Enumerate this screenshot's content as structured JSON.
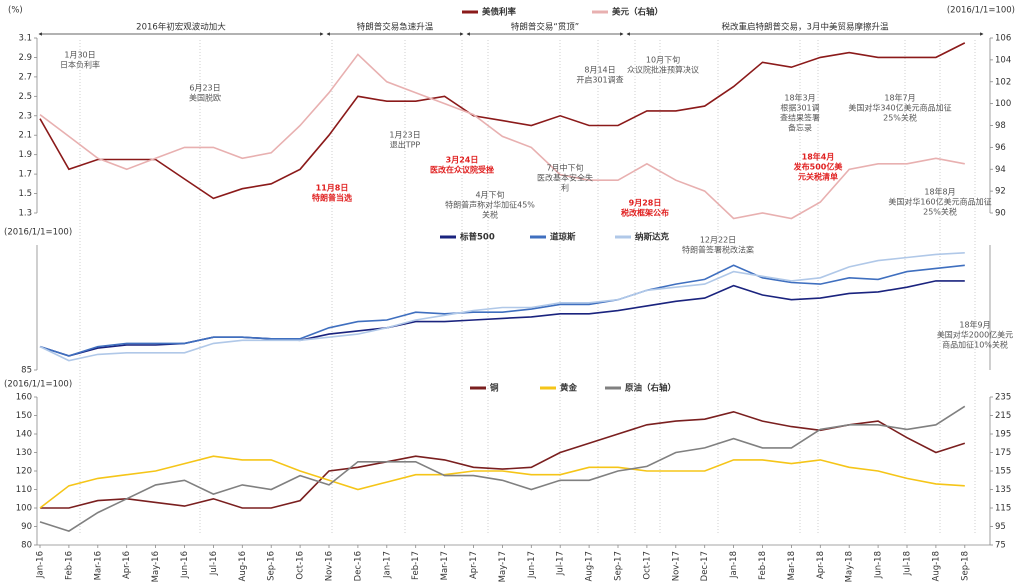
{
  "chart_data": [
    {
      "type": "line",
      "unit_label": "(%)",
      "unit_label_right": "(2016/1/1=100)",
      "ylim": [
        1.3,
        3.1
      ],
      "yticks": [
        1.3,
        1.5,
        1.7,
        1.9,
        2.1,
        2.3,
        2.5,
        2.7,
        2.9,
        3.1
      ],
      "y2lim": [
        90,
        106
      ],
      "y2ticks": [
        90,
        92,
        94,
        96,
        98,
        100,
        102,
        104,
        106
      ],
      "series": [
        {
          "name": "美债利率",
          "color": "#8b1a1a",
          "values": [
            2.27,
            1.75,
            1.85,
            1.85,
            1.85,
            1.65,
            1.45,
            1.55,
            1.6,
            1.75,
            2.1,
            2.5,
            2.45,
            2.45,
            2.5,
            2.3,
            2.25,
            2.2,
            2.3,
            2.2,
            2.2,
            2.35,
            2.35,
            2.4,
            2.6,
            2.85,
            2.8,
            2.9,
            2.95,
            2.9,
            2.9,
            2.9,
            3.05
          ]
        },
        {
          "name": "美元（右轴）",
          "color": "#e8b0b0",
          "axis": "y2",
          "values": [
            99,
            97,
            95,
            94,
            95,
            96,
            96,
            95,
            95.5,
            98,
            101,
            104.5,
            102,
            101,
            100,
            99,
            97,
            96,
            93.5,
            93,
            93,
            94.5,
            93,
            92,
            89.5,
            90,
            89.5,
            91,
            94,
            94.5,
            94.5,
            95,
            94.5
          ]
        }
      ]
    },
    {
      "type": "line",
      "unit_label": "(2016/1/1=100)",
      "ylim": [
        85,
        165
      ],
      "yticks": [
        85
      ],
      "series": [
        {
          "name": "标普500",
          "color": "#1a237e",
          "values": [
            100,
            94,
            99,
            101,
            101,
            102,
            106,
            106,
            105,
            104,
            108,
            110,
            112,
            116,
            116,
            117,
            118,
            119,
            121,
            121,
            123,
            126,
            129,
            131,
            139,
            133,
            130,
            131,
            134,
            135,
            138,
            142,
            142
          ]
        },
        {
          "name": "道琼斯",
          "color": "#3f6fbf",
          "values": [
            100,
            94,
            100,
            102,
            102,
            102,
            106,
            106,
            105,
            105,
            112,
            116,
            117,
            122,
            121,
            122,
            122,
            124,
            127,
            127,
            130,
            136,
            140,
            143,
            152,
            144,
            141,
            140,
            144,
            143,
            148,
            150,
            152
          ]
        },
        {
          "name": "纳斯达克",
          "color": "#b0c8e8",
          "values": [
            100,
            91,
            95,
            96,
            96,
            96,
            102,
            104,
            104,
            104,
            106,
            108,
            112,
            117,
            120,
            123,
            125,
            125,
            128,
            128,
            130,
            136,
            138,
            140,
            148,
            145,
            142,
            144,
            151,
            155,
            157,
            159,
            160
          ]
        }
      ]
    },
    {
      "type": "line",
      "unit_label": "(2016/1/1=100)",
      "ylim": [
        80,
        160
      ],
      "yticks": [
        80,
        90,
        100,
        110,
        120,
        130,
        140,
        150,
        160
      ],
      "y2lim": [
        75,
        235
      ],
      "y2ticks": [
        75,
        95,
        115,
        135,
        155,
        175,
        195,
        215,
        235
      ],
      "categories": [
        "Jan-16",
        "Feb-16",
        "Mar-16",
        "Apr-16",
        "May-16",
        "Jun-16",
        "Jul-16",
        "Aug-16",
        "Sep-16",
        "Oct-16",
        "Nov-16",
        "Dec-16",
        "Jan-17",
        "Feb-17",
        "Mar-17",
        "Apr-17",
        "May-17",
        "Jun-17",
        "Jul-17",
        "Aug-17",
        "Sep-17",
        "Oct-17",
        "Nov-17",
        "Dec-17",
        "Jan-18",
        "Feb-18",
        "Mar-18",
        "Apr-18",
        "May-18",
        "Jun-18",
        "Jul-18",
        "Aug-18",
        "Sep-18"
      ],
      "series": [
        {
          "name": "铜",
          "color": "#7a1f1f",
          "values": [
            100,
            100,
            104,
            105,
            103,
            101,
            105,
            100,
            100,
            104,
            120,
            122,
            125,
            128,
            126,
            122,
            121,
            122,
            130,
            135,
            140,
            145,
            147,
            148,
            152,
            147,
            144,
            142,
            145,
            147,
            138,
            130,
            135
          ]
        },
        {
          "name": "黄金",
          "color": "#f5c518",
          "values": [
            100,
            112,
            116,
            118,
            120,
            124,
            128,
            126,
            126,
            120,
            115,
            110,
            114,
            118,
            118,
            120,
            120,
            118,
            118,
            122,
            122,
            120,
            120,
            120,
            126,
            126,
            124,
            126,
            122,
            120,
            116,
            113,
            112
          ]
        },
        {
          "name": "原油（右轴）",
          "color": "#808080",
          "axis": "y2",
          "values": [
            100,
            90,
            110,
            125,
            140,
            145,
            130,
            140,
            135,
            150,
            140,
            165,
            165,
            165,
            150,
            150,
            145,
            135,
            145,
            145,
            155,
            160,
            175,
            180,
            190,
            180,
            180,
            200,
            205,
            205,
            200,
            205,
            225
          ]
        }
      ]
    }
  ],
  "periods": [
    "2016年初宏观波动加大",
    "特朗普交易急速升温",
    "特朗普交易“贯顶”",
    "税改重启特朗普交易，3月中美贸易摩擦升温"
  ],
  "annotations": [
    {
      "text": [
        "1月30日",
        "日本负利率"
      ],
      "color": "#555"
    },
    {
      "text": [
        "6月23日",
        "美国脱欧"
      ],
      "color": "#555"
    },
    {
      "text": [
        "11月8日",
        "特朗普当选"
      ],
      "color": "#e02020"
    },
    {
      "text": [
        "1月23日",
        "退出TPP"
      ],
      "color": "#555"
    },
    {
      "text": [
        "3月24日",
        "医改在众议院受挫"
      ],
      "color": "#e02020"
    },
    {
      "text": [
        "4月下旬",
        "特朗普声称对华加征45%",
        "关税"
      ],
      "color": "#555"
    },
    {
      "text": [
        "7月中下旬",
        "医改基本安全失",
        "利"
      ],
      "color": "#555"
    },
    {
      "text": [
        "8月14日",
        "开启301调查"
      ],
      "color": "#555"
    },
    {
      "text": [
        "9月28日",
        "税改框架公布"
      ],
      "color": "#e02020"
    },
    {
      "text": [
        "10月下旬",
        "众议院批准预算决议"
      ],
      "color": "#555"
    },
    {
      "text": [
        "12月22日",
        "特朗普签署税改法案"
      ],
      "color": "#555"
    },
    {
      "text": [
        "18年3月",
        "根据301调",
        "查结果签署",
        "备忘录"
      ],
      "color": "#555"
    },
    {
      "text": [
        "18年4月",
        "发布500亿美",
        "元关税清单"
      ],
      "color": "#e02020"
    },
    {
      "text": [
        "18年7月",
        "美国对华340亿美元商品加征",
        "25%关税"
      ],
      "color": "#555"
    },
    {
      "text": [
        "18年8月",
        "美国对华160亿美元商品加征",
        "25%关税"
      ],
      "color": "#555"
    },
    {
      "text": [
        "18年9月",
        "美国对华2000亿美元",
        "商品加征10%关税"
      ],
      "color": "#555"
    }
  ]
}
